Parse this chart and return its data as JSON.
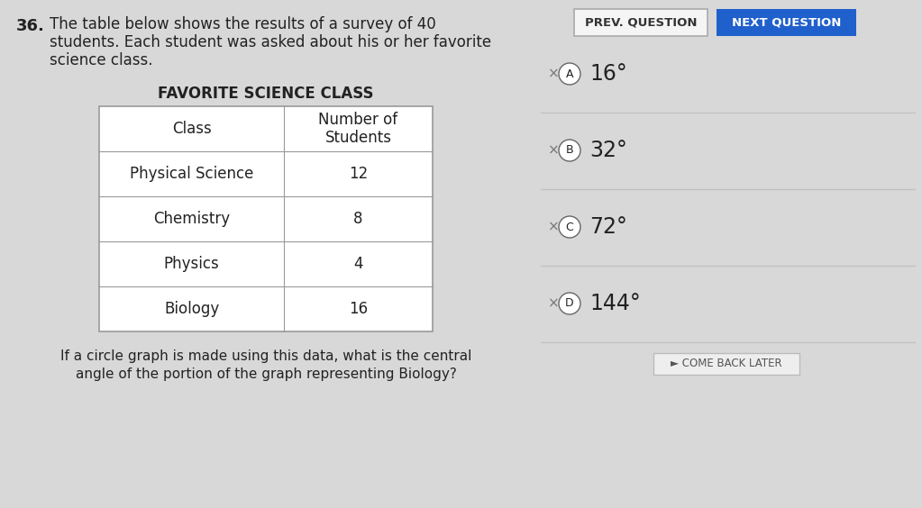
{
  "background_color": "#d8d8d8",
  "right_panel_color": "#e8e8e8",
  "question_number": "36.",
  "question_text_line1": "The table below shows the results of a survey of 40",
  "question_text_line2": "students. Each student was asked about his or her favorite",
  "question_text_line3": "science class.",
  "table_title": "FAVORITE SCIENCE CLASS",
  "table_headers": [
    "Class",
    "Number of\nStudents"
  ],
  "table_rows": [
    [
      "Physical Science",
      "12"
    ],
    [
      "Chemistry",
      "8"
    ],
    [
      "Physics",
      "4"
    ],
    [
      "Biology",
      "16"
    ]
  ],
  "footer_text_line1": "If a circle graph is made using this data, what is the central",
  "footer_text_line2": "angle of the portion of the graph representing Biology?",
  "prev_button_text": "PREV. QUESTION",
  "next_button_text": "NEXT QUESTION",
  "next_button_color": "#2060cc",
  "next_button_text_color": "#ffffff",
  "prev_button_color": "#f5f5f5",
  "prev_button_text_color": "#333333",
  "answer_options": [
    {
      "label": "A",
      "value": "16°"
    },
    {
      "label": "B",
      "value": "32°"
    },
    {
      "label": "C",
      "value": "72°"
    },
    {
      "label": "D",
      "value": "144°"
    }
  ],
  "come_back_text": "► COME BACK LATER",
  "x_mark": "×",
  "divider_color": "#c0c0c0",
  "text_color": "#222222",
  "label_circle_color": "#ffffff",
  "label_circle_border": "#666666",
  "table_bg": "#ffffff",
  "table_border": "#999999"
}
